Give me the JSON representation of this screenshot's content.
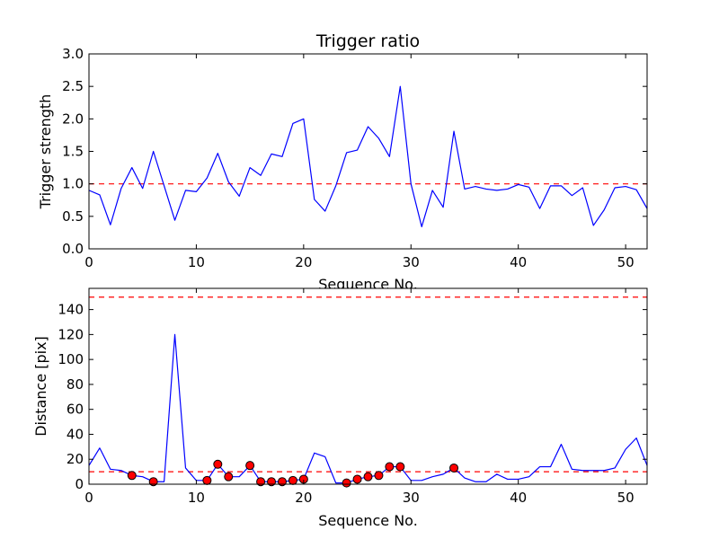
{
  "chart_data": [
    {
      "type": "line",
      "title": "Trigger ratio",
      "xlabel": "Sequence No.",
      "ylabel": "Trigger strength",
      "xlim": [
        0,
        52
      ],
      "ylim": [
        0,
        3.0
      ],
      "xticks": [
        0,
        10,
        20,
        30,
        40,
        50
      ],
      "yticks": [
        0.0,
        0.5,
        1.0,
        1.5,
        2.0,
        2.5,
        3.0
      ],
      "ytick_labels": [
        "0.0",
        "0.5",
        "1.0",
        "1.5",
        "2.0",
        "2.5",
        "3.0"
      ],
      "grid": false,
      "series": [
        {
          "color": "#0000ff",
          "x": [
            0,
            1,
            2,
            3,
            4,
            5,
            6,
            7,
            8,
            9,
            10,
            11,
            12,
            13,
            14,
            15,
            16,
            17,
            18,
            19,
            20,
            21,
            22,
            23,
            24,
            25,
            26,
            27,
            28,
            29,
            30,
            31,
            32,
            33,
            34,
            35,
            36,
            37,
            38,
            39,
            40,
            41,
            42,
            43,
            44,
            45,
            46,
            47,
            48,
            49,
            50,
            51,
            52
          ],
          "values": [
            0.9,
            0.83,
            0.37,
            0.93,
            1.25,
            0.93,
            1.5,
            0.97,
            0.44,
            0.9,
            0.88,
            1.09,
            1.47,
            1.03,
            0.81,
            1.25,
            1.13,
            1.46,
            1.42,
            1.93,
            2.0,
            0.76,
            0.58,
            0.97,
            1.48,
            1.52,
            1.88,
            1.7,
            1.42,
            2.5,
            1.0,
            0.34,
            0.9,
            0.64,
            1.81,
            0.92,
            0.96,
            0.92,
            0.9,
            0.92,
            0.99,
            0.95,
            0.62,
            0.97,
            0.97,
            0.82,
            0.94,
            0.36,
            0.6,
            0.94,
            0.96,
            0.91,
            0.62
          ]
        }
      ],
      "reference_lines": [
        {
          "y": 1.0,
          "color": "#ff0000",
          "style": "dashed"
        }
      ]
    },
    {
      "type": "line",
      "title": "",
      "xlabel": "Sequence No.",
      "ylabel": "Distance [pix]",
      "xlim": [
        0,
        52
      ],
      "ylim": [
        0,
        157
      ],
      "xticks": [
        0,
        10,
        20,
        30,
        40,
        50
      ],
      "yticks": [
        0,
        20,
        40,
        60,
        80,
        100,
        120,
        140
      ],
      "ytick_labels": [
        "0",
        "20",
        "40",
        "60",
        "80",
        "100",
        "120",
        "140"
      ],
      "grid": false,
      "series": [
        {
          "color": "#0000ff",
          "x": [
            0,
            1,
            2,
            3,
            4,
            5,
            6,
            7,
            8,
            9,
            10,
            11,
            12,
            13,
            14,
            15,
            16,
            17,
            18,
            19,
            20,
            21,
            22,
            23,
            24,
            25,
            26,
            27,
            28,
            29,
            30,
            31,
            32,
            33,
            34,
            35,
            36,
            37,
            38,
            39,
            40,
            41,
            42,
            43,
            44,
            45,
            46,
            47,
            48,
            49,
            50,
            51,
            52
          ],
          "values": [
            15,
            29,
            12,
            11,
            7,
            6,
            2,
            2,
            120,
            13,
            3,
            3,
            16,
            6,
            6,
            15,
            2,
            2,
            2,
            3,
            4,
            25,
            22,
            1,
            1,
            4,
            6,
            7,
            14,
            14,
            3,
            3,
            6,
            8,
            13,
            5,
            2,
            2,
            8,
            4,
            4,
            6,
            14,
            14,
            32,
            12,
            11,
            11,
            11,
            13,
            28,
            37,
            15
          ]
        },
        {
          "color": "#ff0000",
          "marker": "circle",
          "x": [
            4,
            6,
            11,
            12,
            13,
            15,
            16,
            17,
            18,
            19,
            20,
            24,
            25,
            26,
            27,
            28,
            29,
            34
          ],
          "values": [
            7,
            2,
            3,
            16,
            6,
            15,
            2,
            2,
            2,
            3,
            4,
            1,
            4,
            6,
            7,
            14,
            14,
            13
          ]
        }
      ],
      "reference_lines": [
        {
          "y": 150,
          "color": "#ff0000",
          "style": "dashed"
        },
        {
          "y": 10,
          "color": "#ff0000",
          "style": "dashed"
        }
      ]
    }
  ]
}
